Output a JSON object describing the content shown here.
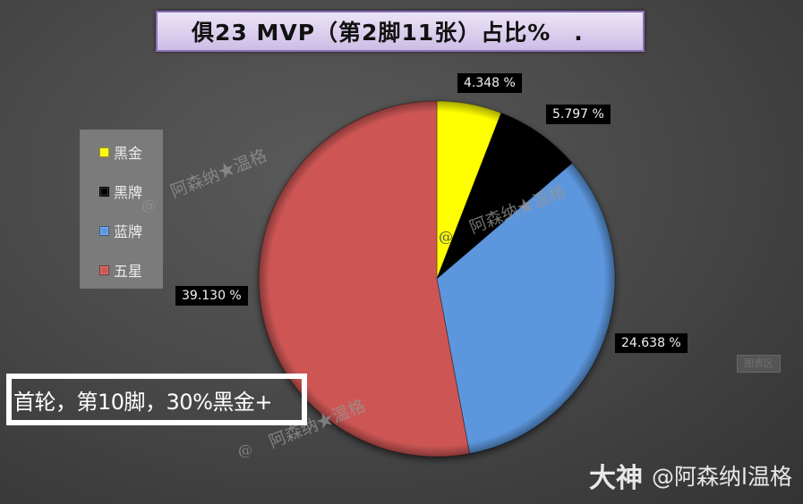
{
  "title": "俱23 MVP（第2脚11张）占比%　.",
  "legend": {
    "items": [
      {
        "label": "黑金",
        "color": "#ffff00"
      },
      {
        "label": "黑牌",
        "color": "#000000"
      },
      {
        "label": "蓝牌",
        "color": "#5b97de"
      },
      {
        "label": "五星",
        "color": "#cd5654"
      }
    ]
  },
  "data_labels": {
    "heijin": "4.348 %",
    "heipai": "5.797 %",
    "lanpai": "24.638 %",
    "wuxing": "39.130 %"
  },
  "annotation": "首轮，第10脚，30%黑金+",
  "chart_area_tag": "图表区",
  "watermark": {
    "text": "阿森纳★温格",
    "at": "@"
  },
  "brand": {
    "logo": "大神",
    "user": "@阿森纳l温格"
  },
  "chart_data": {
    "type": "pie",
    "title": "俱23 MVP（第2脚11张）占比%",
    "categories": [
      "黑金",
      "黑牌",
      "蓝牌",
      "五星"
    ],
    "values": [
      4.348,
      5.797,
      24.638,
      39.13
    ],
    "colors": [
      "#ffff00",
      "#000000",
      "#5b97de",
      "#cd5654"
    ],
    "units": "%",
    "legend_position": "left",
    "start_angle_deg": 0,
    "direction": "clockwise"
  }
}
